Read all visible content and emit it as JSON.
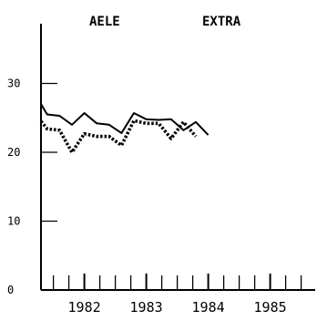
{
  "chart_data": {
    "type": "line",
    "title": "",
    "xlabel": "",
    "ylabel": "",
    "xlim": [
      1981.3,
      1985.5
    ],
    "ylim": [
      0,
      40
    ],
    "y_ticks": [
      0,
      10,
      20,
      30
    ],
    "y_tick_labels": [
      "0",
      "10",
      "20",
      "30"
    ],
    "x_tick_labels": [
      {
        "x": 1982,
        "label": "1982"
      },
      {
        "x": 1983,
        "label": "1983"
      },
      {
        "x": 1984,
        "label": "1984"
      },
      {
        "x": 1985,
        "label": "1985"
      }
    ],
    "minor_x_ticks": [
      1981.35,
      1981.5,
      1981.75,
      1982.0,
      1982.25,
      1982.5,
      1982.75,
      1983.0,
      1983.25,
      1983.5,
      1983.75,
      1984.0,
      1984.25,
      1984.5,
      1984.75,
      1985.0,
      1985.25,
      1985.5
    ],
    "legend": [
      "AELE",
      "EXTRA"
    ],
    "legend_position": "top",
    "grid": false,
    "series": [
      {
        "name": "AELE",
        "style": "solid",
        "color": "#000000",
        "x": [
          1981.3,
          1981.4,
          1981.6,
          1981.8,
          1982.0,
          1982.2,
          1982.4,
          1982.6,
          1982.8,
          1983.0,
          1983.2,
          1983.4,
          1983.6,
          1983.8,
          1984.0,
          1984.2,
          1984.4,
          1984.6
        ],
        "values": [
          27.0,
          25.5,
          25.3,
          24.0,
          25.7,
          24.2,
          24.0,
          22.8,
          25.7,
          24.8,
          24.7,
          24.8,
          23.2,
          24.4,
          22.5,
          null,
          null,
          null
        ]
      },
      {
        "name": "EXTRA",
        "style": "dotted",
        "color": "#000000",
        "x": [
          1981.3,
          1981.4,
          1981.6,
          1981.8,
          1982.0,
          1982.2,
          1982.4,
          1982.6,
          1982.8,
          1983.0,
          1983.2,
          1983.4,
          1983.6,
          1983.8,
          1984.0,
          1984.2,
          1984.4,
          1984.6
        ],
        "values": [
          24.5,
          23.4,
          23.2,
          20.0,
          22.7,
          22.3,
          22.3,
          21.0,
          24.6,
          24.2,
          24.2,
          22.0,
          24.4,
          22.3,
          null,
          null,
          null,
          null
        ]
      }
    ]
  }
}
